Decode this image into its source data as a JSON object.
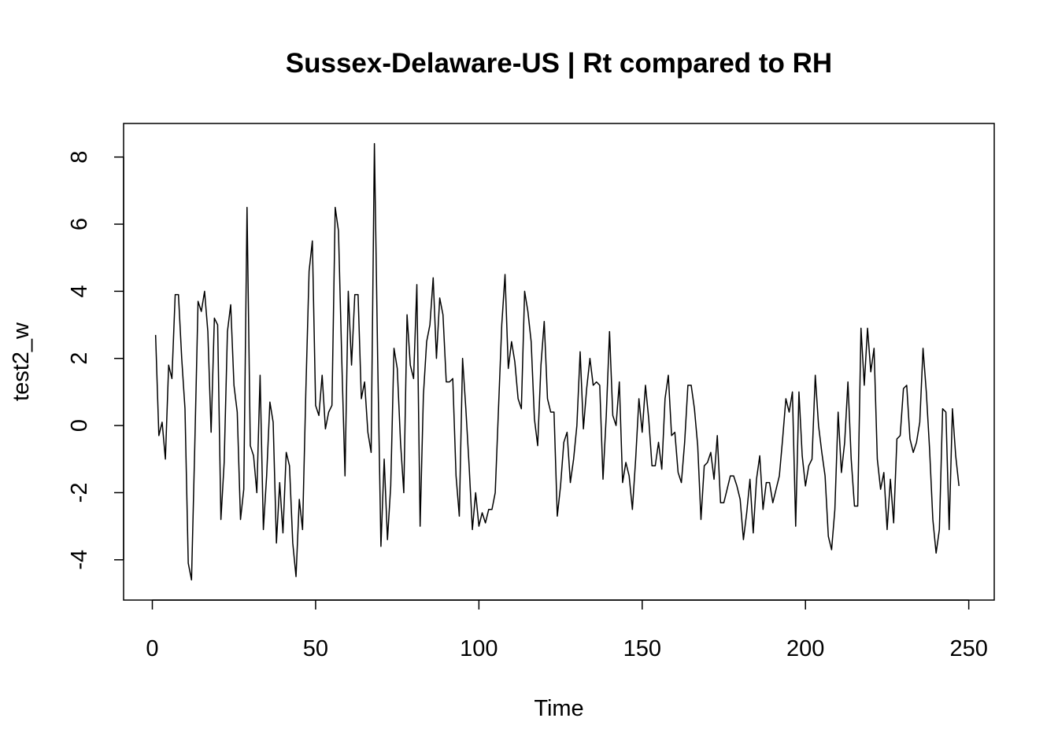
{
  "chart_data": {
    "type": "line",
    "title": "Sussex-Delaware-US | Rt compared to RH",
    "xlabel": "Time",
    "ylabel": "test2_w",
    "xlim": [
      -8.8,
      257.8
    ],
    "ylim": [
      -5.2,
      9.0
    ],
    "x_ticks": [
      0,
      50,
      100,
      150,
      200,
      250
    ],
    "y_ticks": [
      -4,
      -2,
      0,
      2,
      4,
      6,
      8
    ],
    "grid": false,
    "legend": "none",
    "line_color": "#000000",
    "series": [
      {
        "values": [
          2.7,
          -0.3,
          0.1,
          -1.0,
          1.8,
          1.4,
          3.9,
          3.9,
          2.0,
          0.5,
          -4.1,
          -4.6,
          -0.6,
          3.7,
          3.4,
          4.0,
          2.8,
          -0.2,
          3.2,
          3.0,
          -2.8,
          -1.1,
          2.8,
          3.6,
          1.2,
          0.4,
          -2.8,
          -1.9,
          6.5,
          -0.6,
          -0.9,
          -2.0,
          1.5,
          -3.1,
          -1.5,
          0.7,
          0.1,
          -3.5,
          -1.7,
          -3.2,
          -0.8,
          -1.2,
          -3.5,
          -4.5,
          -2.2,
          -3.1,
          1.0,
          4.6,
          5.5,
          0.6,
          0.3,
          1.5,
          -0.1,
          0.4,
          0.6,
          6.5,
          5.8,
          2.0,
          -1.5,
          4.0,
          1.8,
          3.9,
          3.9,
          0.8,
          1.3,
          -0.2,
          -0.8,
          8.4,
          2.0,
          -3.6,
          -1.0,
          -3.4,
          -1.8,
          2.3,
          1.7,
          -0.5,
          -2.0,
          3.3,
          1.8,
          1.4,
          4.2,
          -3.0,
          0.9,
          2.5,
          3.0,
          4.4,
          2.0,
          3.8,
          3.3,
          1.3,
          1.3,
          1.4,
          -1.5,
          -2.7,
          2.0,
          0.5,
          -1.2,
          -3.1,
          -2.0,
          -3.0,
          -2.6,
          -2.9,
          -2.5,
          -2.5,
          -2.0,
          0.5,
          3.0,
          4.5,
          1.7,
          2.5,
          1.9,
          0.8,
          0.5,
          4.0,
          3.4,
          2.5,
          0.2,
          -0.6,
          1.8,
          3.1,
          0.8,
          0.4,
          0.4,
          -2.7,
          -1.8,
          -0.5,
          -0.2,
          -1.7,
          -1.0,
          0.0,
          2.2,
          -0.1,
          1.1,
          2.0,
          1.2,
          1.3,
          1.2,
          -1.6,
          0.3,
          2.8,
          0.3,
          0.0,
          1.3,
          -1.7,
          -1.1,
          -1.5,
          -2.5,
          -1.0,
          0.8,
          -0.2,
          1.2,
          0.2,
          -1.2,
          -1.2,
          -0.5,
          -1.3,
          0.8,
          1.5,
          -0.3,
          -0.2,
          -1.4,
          -1.7,
          -0.5,
          1.2,
          1.2,
          0.5,
          -0.6,
          -2.8,
          -1.2,
          -1.1,
          -0.8,
          -1.6,
          -0.3,
          -2.3,
          -2.3,
          -1.9,
          -1.5,
          -1.5,
          -1.8,
          -2.2,
          -3.4,
          -2.6,
          -1.6,
          -3.2,
          -1.6,
          -0.9,
          -2.5,
          -1.7,
          -1.7,
          -2.3,
          -1.9,
          -1.5,
          -0.4,
          0.8,
          0.4,
          1.0,
          -3.0,
          1.0,
          -0.9,
          -1.8,
          -1.2,
          -1.0,
          1.5,
          0.0,
          -0.8,
          -1.5,
          -3.3,
          -3.7,
          -2.5,
          0.4,
          -1.4,
          -0.5,
          1.3,
          -1.0,
          -2.4,
          -2.4,
          2.9,
          1.2,
          2.9,
          1.6,
          2.3,
          -1.0,
          -1.9,
          -1.4,
          -3.1,
          -1.6,
          -2.9,
          -0.4,
          -0.3,
          1.1,
          1.2,
          -0.4,
          -0.8,
          -0.5,
          0.1,
          2.3,
          1.0,
          -0.7,
          -2.8,
          -3.8,
          -3.1,
          0.5,
          0.4,
          -3.1,
          0.5,
          -0.9,
          -1.8
        ]
      }
    ]
  }
}
